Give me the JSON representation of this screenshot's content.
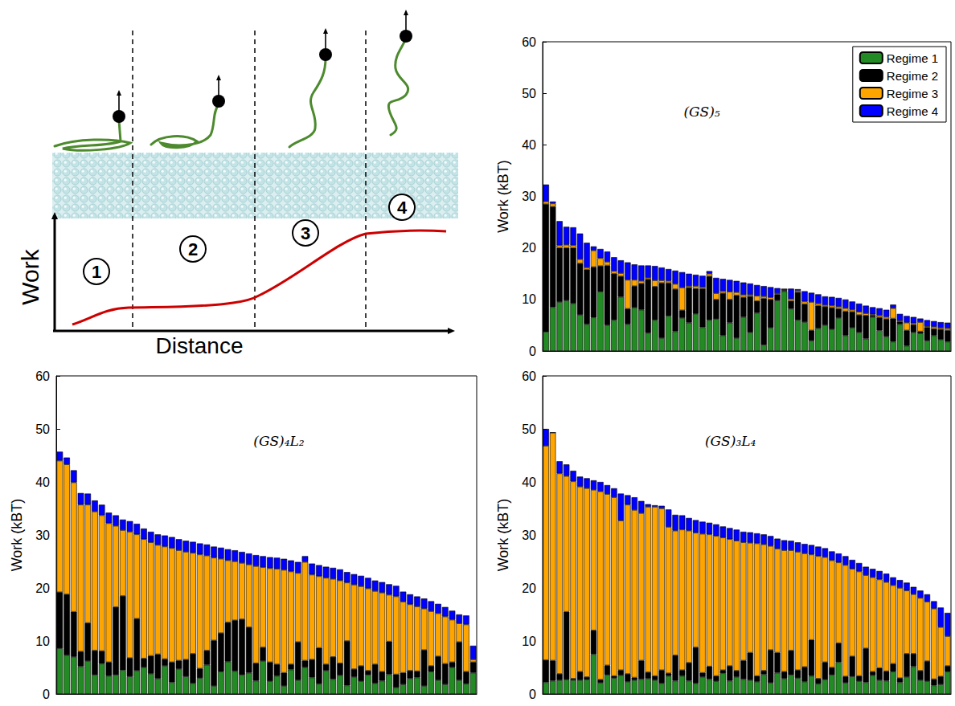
{
  "schematic": {
    "y_label": "Work",
    "x_label": "Distance",
    "regimes": [
      "1",
      "2",
      "3",
      "4"
    ]
  },
  "chart_data": [
    {
      "type": "bar",
      "stacked": true,
      "title": "(GS)₅",
      "y_label": "Work (kBT)",
      "categories": [
        null,
        null,
        null,
        null,
        null,
        null,
        null,
        null,
        null,
        null,
        null,
        null,
        null,
        null,
        null,
        null,
        null,
        null,
        null,
        null,
        null,
        null,
        null,
        null,
        null,
        null,
        null,
        null,
        null,
        null,
        null,
        null,
        null,
        null,
        null,
        null,
        null,
        null,
        null,
        null,
        null,
        null,
        null,
        null,
        null,
        null,
        null,
        null,
        null,
        null,
        null,
        null,
        null,
        null,
        null,
        null,
        null,
        null,
        null,
        null
      ],
      "series": [
        {
          "name": "Regime 1",
          "color": "#238b23",
          "values": [
            3.7,
            8.5,
            9.5,
            9.8,
            9.2,
            7,
            5.2,
            6.5,
            11.5,
            5,
            6,
            10.5,
            5.2,
            8.4,
            8,
            3.5,
            6,
            2.5,
            6.8,
            3.8,
            6.4,
            5.5,
            7.2,
            4.6,
            6,
            6.2,
            3,
            5.5,
            2.5,
            6.6,
            3.6,
            7.4,
            1.2,
            4.5,
            9.8,
            11.6,
            8.2,
            6,
            5.6,
            2,
            4.4,
            5,
            4.2,
            6.4,
            3,
            4.5,
            3.6,
            2.4,
            6.6,
            4,
            2.8,
            1.8,
            5.2,
            1,
            3.6,
            3.4,
            2,
            3,
            2.2,
            1.8
          ]
        },
        {
          "name": "Regime 2",
          "color": "#000000",
          "values": [
            24.8,
            19.5,
            10.5,
            10.2,
            10.8,
            10,
            10.6,
            9.8,
            5,
            11.6,
            9,
            4,
            3,
            4.2,
            5.1,
            10.4,
            6.5,
            10.7,
            6.4,
            8.2,
            1.5,
            6.8,
            4.9,
            7.5,
            8.5,
            3.8,
            8.2,
            4.5,
            8.3,
            3.8,
            7,
            2.3,
            9,
            5.5,
            1.2,
            0.2,
            1.5,
            5.4,
            3.5,
            2,
            4.4,
            3.6,
            4.2,
            1.8,
            4.7,
            3.1,
            3.4,
            4.5,
            0.3,
            2.5,
            3.4,
            4.5,
            0.5,
            3,
            1.5,
            0.4,
            2.6,
            1.3,
            2,
            2.2
          ]
        },
        {
          "name": "Regime 3",
          "color": "#ffa500",
          "values": [
            0.5,
            0.6,
            0.5,
            0.6,
            0.5,
            0.8,
            0.4,
            3.2,
            1.5,
            0.7,
            0.5,
            0.6,
            5.6,
            1.2,
            0.5,
            0.3,
            1.2,
            0.5,
            0.4,
            1,
            4.4,
            0.3,
            0.5,
            0.3,
            0.5,
            1.2,
            0.4,
            1.5,
            0.6,
            0.5,
            0.3,
            1,
            0.4,
            0.4,
            0.2,
            0.2,
            0.4,
            0.3,
            0.5,
            5.5,
            0.4,
            0.3,
            0.4,
            0.4,
            0.6,
            0.4,
            0.6,
            0.4,
            0.2,
            0.4,
            0.4,
            2,
            0.2,
            1.5,
            0.3,
            1.8,
            0.2,
            0.4,
            0.3,
            0.4
          ]
        },
        {
          "name": "Regime 4",
          "color": "#0000ff",
          "values": [
            3.3,
            0.4,
            4.7,
            3.5,
            3.5,
            5,
            4.8,
            0.8,
            1.8,
            2,
            2.7,
            2.5,
            3.4,
            3,
            3,
            2.4,
            2.8,
            2.5,
            2.3,
            2.6,
            3,
            2.4,
            2.2,
            2.2,
            0.5,
            3,
            2.4,
            2.3,
            2.2,
            2.4,
            2.2,
            2.1,
            2,
            2,
            1,
            0,
            2,
            0.3,
            2,
            1.8,
            1.8,
            1.7,
            1.7,
            1.7,
            1.7,
            1.6,
            1.6,
            1.5,
            1.4,
            1.4,
            1.4,
            0.7,
            1.3,
            1.3,
            1.2,
            0.7,
            1.2,
            1.1,
            1.1,
            1.1
          ]
        }
      ],
      "ylim": [
        0,
        60
      ],
      "yticks": [
        0,
        10,
        20,
        30,
        40,
        50,
        60
      ],
      "tick_labels": "y",
      "grid": false,
      "legend": "upper right"
    },
    {
      "type": "bar",
      "stacked": true,
      "title": "(GS)₄L₂",
      "y_label": "Work (kBT)",
      "categories": [
        null,
        null,
        null,
        null,
        null,
        null,
        null,
        null,
        null,
        null,
        null,
        null,
        null,
        null,
        null,
        null,
        null,
        null,
        null,
        null,
        null,
        null,
        null,
        null,
        null,
        null,
        null,
        null,
        null,
        null,
        null,
        null,
        null,
        null,
        null,
        null,
        null,
        null,
        null,
        null,
        null,
        null,
        null,
        null,
        null,
        null,
        null,
        null,
        null,
        null,
        null,
        null,
        null,
        null,
        null,
        null,
        null,
        null,
        null,
        null
      ],
      "series": [
        {
          "name": "Regime 1",
          "color": "#238b23",
          "values": [
            8.6,
            7.3,
            7,
            5.2,
            6.2,
            3.6,
            5.7,
            3.4,
            3.6,
            4.5,
            3.3,
            4.4,
            5,
            3.8,
            2.9,
            5.3,
            2.2,
            4.7,
            3.3,
            2,
            3,
            5.5,
            1.5,
            4.2,
            6.1,
            4.3,
            3.6,
            4,
            2.5,
            6.2,
            2.4,
            3.4,
            1.5,
            4.6,
            2.6,
            5,
            3.1,
            1.9,
            4.4,
            2.8,
            3.5,
            1.6,
            3.2,
            2.4,
            3.6,
            2,
            2.5,
            3.7,
            1.2,
            1.8,
            2.9,
            3.1,
            1.5,
            4.2,
            2.6,
            1.8,
            5,
            2.6,
            1.9,
            4
          ]
        },
        {
          "name": "Regime 2",
          "color": "#000000",
          "values": [
            10.6,
            11.5,
            8.5,
            2.8,
            7.2,
            4.6,
            2.4,
            2.6,
            12.8,
            14,
            3.5,
            9.8,
            1.7,
            3.4,
            4.6,
            1.3,
            3.8,
            1.6,
            3.2,
            5.6,
            1.8,
            2.7,
            8.6,
            7.3,
            7.4,
            9.6,
            10.5,
            8.6,
            3.3,
            2.6,
            3.6,
            2.2,
            2.5,
            1,
            7.2,
            1.3,
            3.4,
            6.8,
            1.2,
            4.2,
            2.3,
            8.4,
            1.5,
            2.9,
            0.8,
            3.6,
            1.7,
            6.2,
            2.5,
            2.2,
            1.5,
            1.2,
            6.8,
            1.1,
            4.5,
            3.9,
            1,
            7.2,
            2.3,
            2
          ]
        },
        {
          "name": "Regime 3",
          "color": "#ffa500",
          "values": [
            24.8,
            24.5,
            24.4,
            27.7,
            22.3,
            26.2,
            25.6,
            26.2,
            15.3,
            12.4,
            23.8,
            15.9,
            22.5,
            21.4,
            20.6,
            21.2,
            21.5,
            20.8,
            20.3,
            19,
            21.5,
            17.9,
            15.6,
            14,
            11.7,
            11.1,
            10.6,
            11.8,
            18.3,
            15.1,
            17.7,
            18,
            19.4,
            17.5,
            13,
            18.6,
            16,
            13.5,
            16.3,
            14.7,
            15.6,
            11,
            15.9,
            15,
            15.5,
            13.8,
            14.9,
            8.8,
            14.7,
            13.4,
            12.5,
            12.2,
            7.8,
            10.3,
            8.1,
            8.9,
            8,
            3.5,
            8.9,
            0.5
          ]
        },
        {
          "name": "Regime 4",
          "color": "#0000ff",
          "values": [
            1.7,
            1.3,
            2.3,
            2.2,
            2.1,
            2.1,
            2,
            2,
            2,
            2,
            2,
            2,
            2,
            2,
            2,
            2.1,
            2.1,
            2.1,
            2.1,
            2.1,
            2.1,
            2.1,
            2.1,
            2.1,
            2.1,
            2.1,
            2.1,
            2.1,
            2.1,
            2.1,
            2.1,
            2.1,
            2.1,
            2.1,
            2.1,
            1.1,
            2.1,
            2.1,
            2.1,
            2.1,
            2.1,
            2,
            2,
            2,
            2,
            2,
            2,
            2,
            2,
            1.9,
            1.9,
            1.9,
            1.9,
            1.9,
            1.8,
            1.8,
            1.7,
            1.7,
            1.7,
            2.6
          ]
        }
      ],
      "ylim": [
        0,
        60
      ],
      "yticks": [
        0,
        10,
        20,
        30,
        40,
        50,
        60
      ],
      "tick_labels": "y",
      "grid": false
    },
    {
      "type": "bar",
      "stacked": true,
      "title": "(GS)₃L₄",
      "y_label": "Work (kBT)",
      "categories": [
        null,
        null,
        null,
        null,
        null,
        null,
        null,
        null,
        null,
        null,
        null,
        null,
        null,
        null,
        null,
        null,
        null,
        null,
        null,
        null,
        null,
        null,
        null,
        null,
        null,
        null,
        null,
        null,
        null,
        null,
        null,
        null,
        null,
        null,
        null,
        null,
        null,
        null,
        null,
        null,
        null,
        null,
        null,
        null,
        null,
        null,
        null,
        null,
        null,
        null,
        null,
        null,
        null,
        null,
        null,
        null,
        null,
        null,
        null,
        null
      ],
      "series": [
        {
          "name": "Regime 1",
          "color": "#238b23",
          "values": [
            2.2,
            2.5,
            2.6,
            2.7,
            2.6,
            2.6,
            2.7,
            7.5,
            2.1,
            3.6,
            3,
            3.5,
            2.3,
            2.6,
            2.8,
            2.9,
            2.6,
            2,
            3.4,
            2.5,
            3.4,
            2.5,
            2,
            3.2,
            2.8,
            2.4,
            3.9,
            2.5,
            3.2,
            2.8,
            2.6,
            2.3,
            3.7,
            2.1,
            4,
            2.9,
            3.6,
            3,
            2.3,
            3.4,
            1.9,
            2.7,
            3.6,
            6,
            2.1,
            3.3,
            2.4,
            2.2,
            3.5,
            2.6,
            2.5,
            4.2,
            2.2,
            3.2,
            5.2,
            2.6,
            2.4,
            1.6,
            1.8,
            4.2
          ]
        },
        {
          "name": "Regime 2",
          "color": "#000000",
          "values": [
            4.2,
            3.8,
            1.2,
            12.8,
            0.3,
            1.6,
            0.5,
            4.5,
            0.6,
            1.8,
            0.4,
            1,
            1.5,
            0.5,
            3.5,
            1.2,
            0.8,
            2.5,
            0.5,
            4.8,
            1.1,
            3.4,
            6.8,
            0.8,
            2.4,
            1,
            0.6,
            2.8,
            1.2,
            3.5,
            5.2,
            1.1,
            0.7,
            6.2,
            3.8,
            1.3,
            4.6,
            1.5,
            2.8,
            6.8,
            1,
            3.3,
            1.4,
            3.6,
            1.2,
            3.8,
            1,
            6.4,
            0.7,
            2.3,
            1.8,
            1.5,
            0.8,
            4.4,
            2.4,
            1.8,
            3.8,
            1.2,
            1.5,
            1.1
          ]
        },
        {
          "name": "Regime 3",
          "color": "#ffa500",
          "values": [
            40.4,
            43,
            37.8,
            25.6,
            37.2,
            34.9,
            35.6,
            26.5,
            35.5,
            32.3,
            33.7,
            28.2,
            31.9,
            31.6,
            27.8,
            31.2,
            31.9,
            30.5,
            27.6,
            23.5,
            26.5,
            24.9,
            21.6,
            26.2,
            24.9,
            26.4,
            25,
            23.9,
            24.5,
            22.3,
            20.7,
            25,
            23.8,
            19.6,
            19.6,
            22.9,
            18.9,
            22.3,
            21.4,
            16.1,
            23.1,
            19.8,
            20.2,
            15.2,
            21,
            16.5,
            19.7,
            13.8,
            17.8,
            16.7,
            16.8,
            14.8,
            17,
            11.9,
            11.2,
            13.7,
            11.2,
            13.3,
            9.3,
            5.6
          ]
        },
        {
          "name": "Regime 4",
          "color": "#0000ff",
          "values": [
            3.2,
            0,
            2.3,
            2.2,
            2,
            1.9,
            1.9,
            1.8,
            1.8,
            1.7,
            1.7,
            5.1,
            1.8,
            2.4,
            2.3,
            0.5,
            0.3,
            0.5,
            3.3,
            3,
            2.7,
            2.4,
            2.4,
            2.3,
            2.2,
            2.2,
            2.1,
            2.1,
            2.1,
            2,
            2,
            1.9,
            1.9,
            1.9,
            1.9,
            1.9,
            1.8,
            1.8,
            1.8,
            1.8,
            1.8,
            1.7,
            1.7,
            1.7,
            1.7,
            1.7,
            1.6,
            1.6,
            1.6,
            1.6,
            1.6,
            1.5,
            1.5,
            1.5,
            1.4,
            1.4,
            1.4,
            1.4,
            3.7,
            4.4
          ]
        }
      ],
      "ylim": [
        0,
        60
      ],
      "yticks": [
        0,
        10,
        20,
        30,
        40,
        50,
        60
      ],
      "tick_labels": "y",
      "grid": false
    }
  ]
}
